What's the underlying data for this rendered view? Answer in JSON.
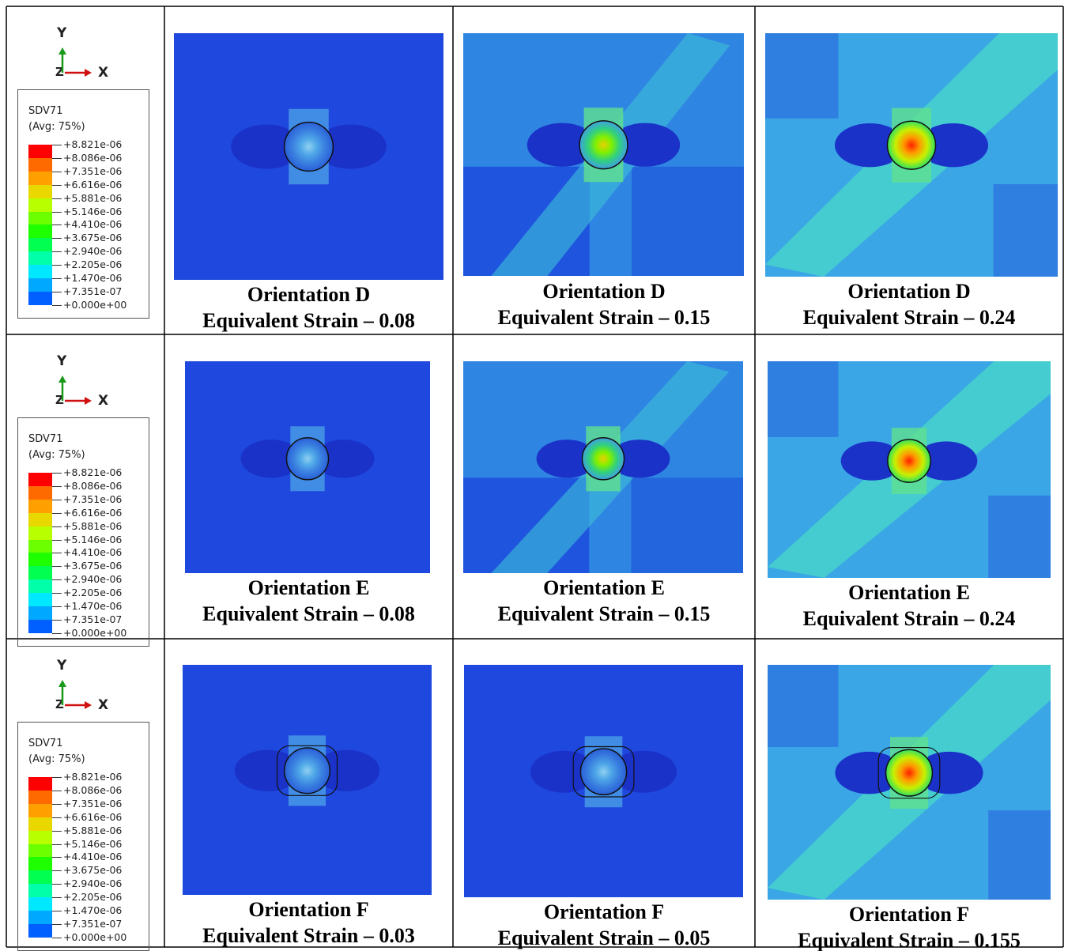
{
  "rows": [
    {
      "axes": {
        "y": "Y",
        "z": "Z",
        "x": "X"
      },
      "legend": {
        "title": "SDV71",
        "subtitle": "(Avg: 75%)",
        "labels": [
          "+8.821e-06",
          "+8.086e-06",
          "+7.351e-06",
          "+6.616e-06",
          "+5.881e-06",
          "+5.146e-06",
          "+4.410e-06",
          "+3.675e-06",
          "+2.940e-06",
          "+2.205e-06",
          "+1.470e-06",
          "+7.351e-07",
          "+0.000e+00"
        ]
      },
      "cells": [
        {
          "title": "Orientation D",
          "subtitle": "Equivalent Strain – 0.08"
        },
        {
          "title": "Orientation D",
          "subtitle": "Equivalent Strain – 0.15"
        },
        {
          "title": "Orientation D",
          "subtitle": "Equivalent Strain – 0.24"
        }
      ]
    },
    {
      "axes": {
        "y": "Y",
        "z": "Z",
        "x": "X"
      },
      "legend": {
        "title": "SDV71",
        "subtitle": "(Avg: 75%)",
        "labels": [
          "+8.821e-06",
          "+8.086e-06",
          "+7.351e-06",
          "+6.616e-06",
          "+5.881e-06",
          "+5.146e-06",
          "+4.410e-06",
          "+3.675e-06",
          "+2.940e-06",
          "+2.205e-06",
          "+1.470e-06",
          "+7.351e-07",
          "+0.000e+00"
        ]
      },
      "cells": [
        {
          "title": "Orientation E",
          "subtitle": "Equivalent Strain – 0.08"
        },
        {
          "title": "Orientation E",
          "subtitle": "Equivalent Strain – 0.15"
        },
        {
          "title": "Orientation E",
          "subtitle": "Equivalent Strain – 0.24"
        }
      ]
    },
    {
      "axes": {
        "y": "Y",
        "z": "Z",
        "x": "X"
      },
      "legend": {
        "title": "SDV71",
        "subtitle": "(Avg: 75%)",
        "labels": [
          "+8.821e-06",
          "+8.086e-06",
          "+7.351e-06",
          "+6.616e-06",
          "+5.881e-06",
          "+5.146e-06",
          "+4.410e-06",
          "+3.675e-06",
          "+2.940e-06",
          "+2.205e-06",
          "+1.470e-06",
          "+7.351e-07",
          "+0.000e+00"
        ]
      },
      "cells": [
        {
          "title": "Orientation F",
          "subtitle": "Equivalent Strain – 0.03"
        },
        {
          "title": "Orientation F",
          "subtitle": "Equivalent Strain – 0.05"
        },
        {
          "title": "Orientation F",
          "subtitle": "Equivalent Strain – 0.155"
        }
      ]
    }
  ]
}
